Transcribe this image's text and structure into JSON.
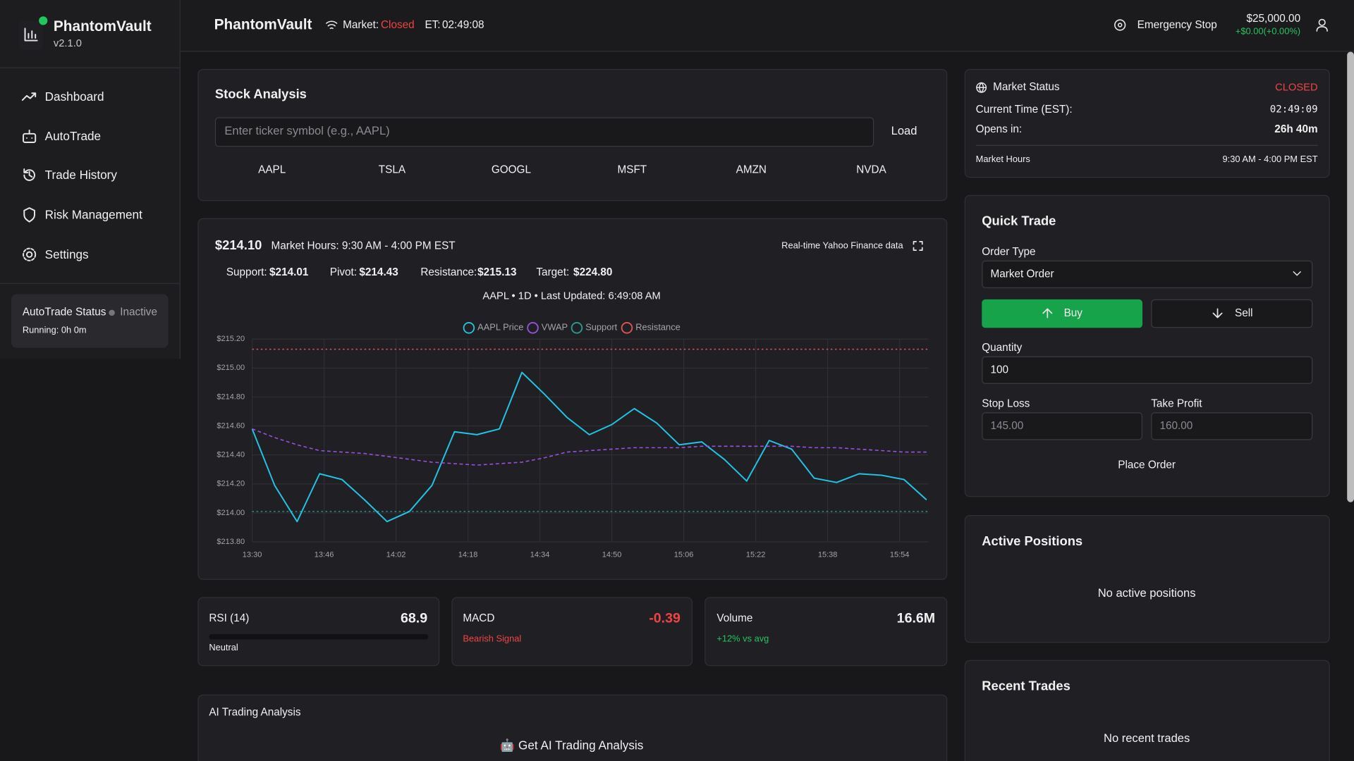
{
  "sidebar": {
    "brand": "PhantomVault",
    "version": "v2.1.0",
    "nav": [
      "Dashboard",
      "AutoTrade",
      "Trade History",
      "Risk Management",
      "Settings"
    ],
    "status": {
      "title": "AutoTrade Status",
      "state": "Inactive",
      "running": "Running: 0h 0m"
    }
  },
  "header": {
    "title": "PhantomVault",
    "market_label": "Market:",
    "market_state": "Closed",
    "et_label": "ET:",
    "et_time": "02:49:08",
    "emergency": "Emergency Stop",
    "balance": "$25,000.00",
    "change": "+$0.00(+0.00%)"
  },
  "stock_analysis": {
    "title": "Stock Analysis",
    "placeholder": "Enter ticker symbol (e.g., AAPL)",
    "load": "Load",
    "tickers": [
      "AAPL",
      "TSLA",
      "GOOGL",
      "MSFT",
      "AMZN",
      "NVDA"
    ]
  },
  "chart_panel": {
    "price": "$214.10",
    "market_hours": "Market Hours: 9:30 AM - 4:00 PM EST",
    "source": "Real-time Yahoo Finance data",
    "levels": [
      {
        "name": "Support:",
        "value": "$214.01"
      },
      {
        "name": "Pivot:",
        "value": "$214.43"
      },
      {
        "name": "Resistance:",
        "value": "$215.13"
      },
      {
        "name": "Target:",
        "value": "$224.80"
      }
    ],
    "subtitle": "AAPL • 1D • Last Updated: 6:49:08 AM"
  },
  "chart_data": {
    "type": "line",
    "x": [
      810,
      815,
      820,
      825,
      830,
      835,
      840,
      845,
      850,
      855,
      860,
      865,
      870,
      875,
      880,
      885,
      890,
      895,
      900,
      905,
      910,
      915,
      920,
      925,
      930,
      935,
      940,
      945,
      950,
      955,
      960
    ],
    "xlim": [
      810,
      960
    ],
    "xticks": [
      {
        "value": 810,
        "label": "13:30"
      },
      {
        "value": 826,
        "label": "13:46"
      },
      {
        "value": 842,
        "label": "14:02"
      },
      {
        "value": 858,
        "label": "14:18"
      },
      {
        "value": 874,
        "label": "14:34"
      },
      {
        "value": 890,
        "label": "14:50"
      },
      {
        "value": 906,
        "label": "15:06"
      },
      {
        "value": 922,
        "label": "15:22"
      },
      {
        "value": 938,
        "label": "15:38"
      },
      {
        "value": 954,
        "label": "15:54"
      }
    ],
    "ylim": [
      213.8,
      215.2
    ],
    "yticks": [
      {
        "value": 213.8,
        "label": "$213.80"
      },
      {
        "value": 214.0,
        "label": "$214.00"
      },
      {
        "value": 214.2,
        "label": "$214.20"
      },
      {
        "value": 214.4,
        "label": "$214.40"
      },
      {
        "value": 214.6,
        "label": "$214.60"
      },
      {
        "value": 214.8,
        "label": "$214.80"
      },
      {
        "value": 215.0,
        "label": "$215.00"
      },
      {
        "value": 215.2,
        "label": "$215.20"
      }
    ],
    "grid": true,
    "series": [
      {
        "name": "AAPL Price",
        "color": "#22c4e6",
        "values": [
          214.58,
          214.19,
          213.94,
          214.27,
          214.23,
          214.09,
          213.94,
          214.01,
          214.19,
          214.56,
          214.54,
          214.58,
          214.97,
          214.82,
          214.66,
          214.54,
          214.61,
          214.72,
          214.62,
          214.47,
          214.49,
          214.37,
          214.22,
          214.5,
          214.44,
          214.24,
          214.21,
          214.27,
          214.26,
          214.23,
          214.09
        ]
      },
      {
        "name": "VWAP",
        "color": "#9b4fe0",
        "dashed": true,
        "values": [
          214.58,
          214.52,
          214.47,
          214.43,
          214.42,
          214.41,
          214.39,
          214.37,
          214.35,
          214.34,
          214.33,
          214.34,
          214.35,
          214.38,
          214.42,
          214.43,
          214.44,
          214.45,
          214.45,
          214.45,
          214.46,
          214.46,
          214.46,
          214.46,
          214.46,
          214.45,
          214.45,
          214.44,
          214.43,
          214.42,
          214.42
        ]
      }
    ],
    "reference_lines": [
      {
        "name": "Support",
        "value": 214.01,
        "color": "#2a9d8f"
      },
      {
        "name": "Resistance",
        "value": 215.13,
        "color": "#e05555"
      }
    ]
  },
  "indicators": [
    {
      "name": "RSI (14)",
      "value": "68.9",
      "note": "Neutral"
    },
    {
      "name": "MACD",
      "value": "-0.39",
      "note": "Bearish Signal"
    },
    {
      "name": "Volume",
      "value": "16.6M",
      "note": "+12% vs avg"
    }
  ],
  "ai_panel": {
    "title": "AI Trading Analysis",
    "button": "🤖 Get AI Trading Analysis"
  },
  "market_status": {
    "title": "Market Status",
    "state": "CLOSED",
    "rows": [
      {
        "label": "Current Time (EST):",
        "value": "02:49:09"
      },
      {
        "label": "Opens in:",
        "value": "26h 40m"
      }
    ],
    "hours_label": "Market Hours",
    "hours": "9:30 AM - 4:00 PM EST"
  },
  "quick_trade": {
    "title": "Quick Trade",
    "order_type_label": "Order Type",
    "order_type": "Market Order",
    "buy": "Buy",
    "sell": "Sell",
    "quantity_label": "Quantity",
    "quantity": "100",
    "stop_loss_label": "Stop Loss",
    "stop_loss": "145.00",
    "take_profit_label": "Take Profit",
    "take_profit": "160.00",
    "place": "Place Order"
  },
  "active_positions": {
    "title": "Active Positions",
    "empty": "No active positions"
  },
  "recent_trades": {
    "title": "Recent Trades",
    "empty": "No recent trades"
  }
}
